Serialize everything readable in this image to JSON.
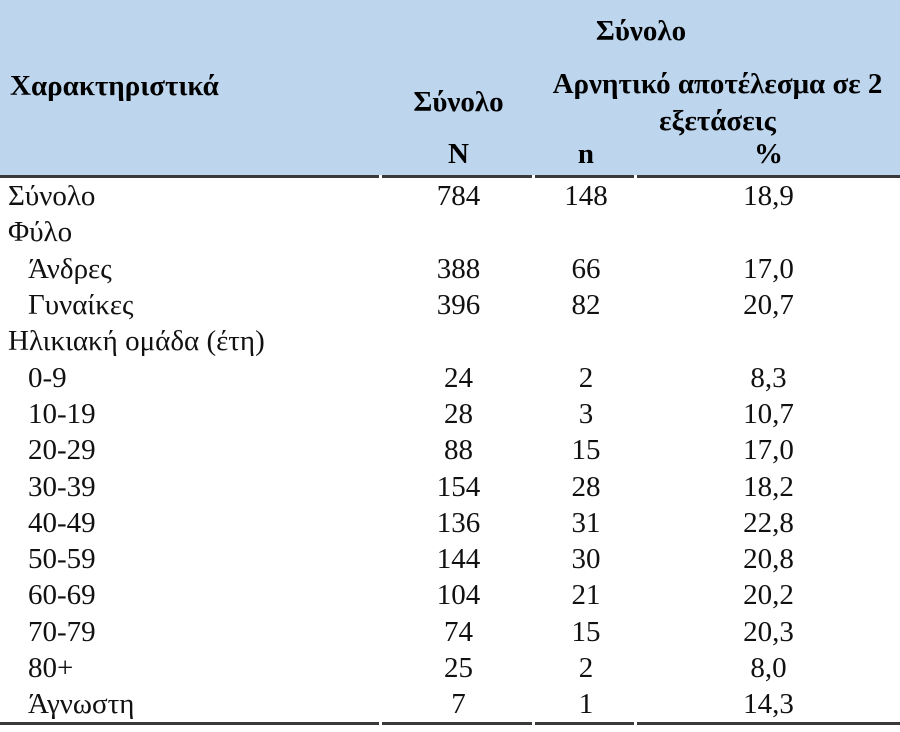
{
  "colors": {
    "header_background": "#bdd6ee",
    "rule": "#3a3a3a",
    "text": "#111111"
  },
  "chart_data": {
    "type": "table",
    "title": "",
    "header": {
      "characteristics": "Χαρακτηριστικά",
      "group_total": "Σύνολο",
      "total_column": "Σύνολο",
      "negative_result": "Αρνητικό αποτέλεσμα σε 2 εξετάσεις",
      "col_N": "N",
      "col_n": "n",
      "col_pct": "%"
    },
    "rows": [
      {
        "label": "Σύνολο",
        "level": 0,
        "N": "784",
        "n": "148",
        "pct": "18,9"
      },
      {
        "label": "Φύλο",
        "level": 0,
        "N": "",
        "n": "",
        "pct": ""
      },
      {
        "label": "Άνδρες",
        "level": 1,
        "N": "388",
        "n": "66",
        "pct": "17,0"
      },
      {
        "label": "Γυναίκες",
        "level": 1,
        "N": "396",
        "n": "82",
        "pct": "20,7"
      },
      {
        "label": "Ηλικιακή ομάδα  (έτη)",
        "level": 0,
        "N": "",
        "n": "",
        "pct": ""
      },
      {
        "label": "0-9",
        "level": 1,
        "N": "24",
        "n": "2",
        "pct": "8,3"
      },
      {
        "label": "10-19",
        "level": 1,
        "N": "28",
        "n": "3",
        "pct": "10,7"
      },
      {
        "label": "20-29",
        "level": 1,
        "N": "88",
        "n": "15",
        "pct": "17,0"
      },
      {
        "label": "30-39",
        "level": 1,
        "N": "154",
        "n": "28",
        "pct": "18,2"
      },
      {
        "label": "40-49",
        "level": 1,
        "N": "136",
        "n": "31",
        "pct": "22,8"
      },
      {
        "label": "50-59",
        "level": 1,
        "N": "144",
        "n": "30",
        "pct": "20,8"
      },
      {
        "label": "60-69",
        "level": 1,
        "N": "104",
        "n": "21",
        "pct": "20,2"
      },
      {
        "label": "70-79",
        "level": 1,
        "N": "74",
        "n": "15",
        "pct": "20,3"
      },
      {
        "label": "80+",
        "level": 1,
        "N": "25",
        "n": "2",
        "pct": "8,0"
      },
      {
        "label": "Άγνωστη",
        "level": 1,
        "N": "7",
        "n": "1",
        "pct": "14,3"
      }
    ]
  }
}
